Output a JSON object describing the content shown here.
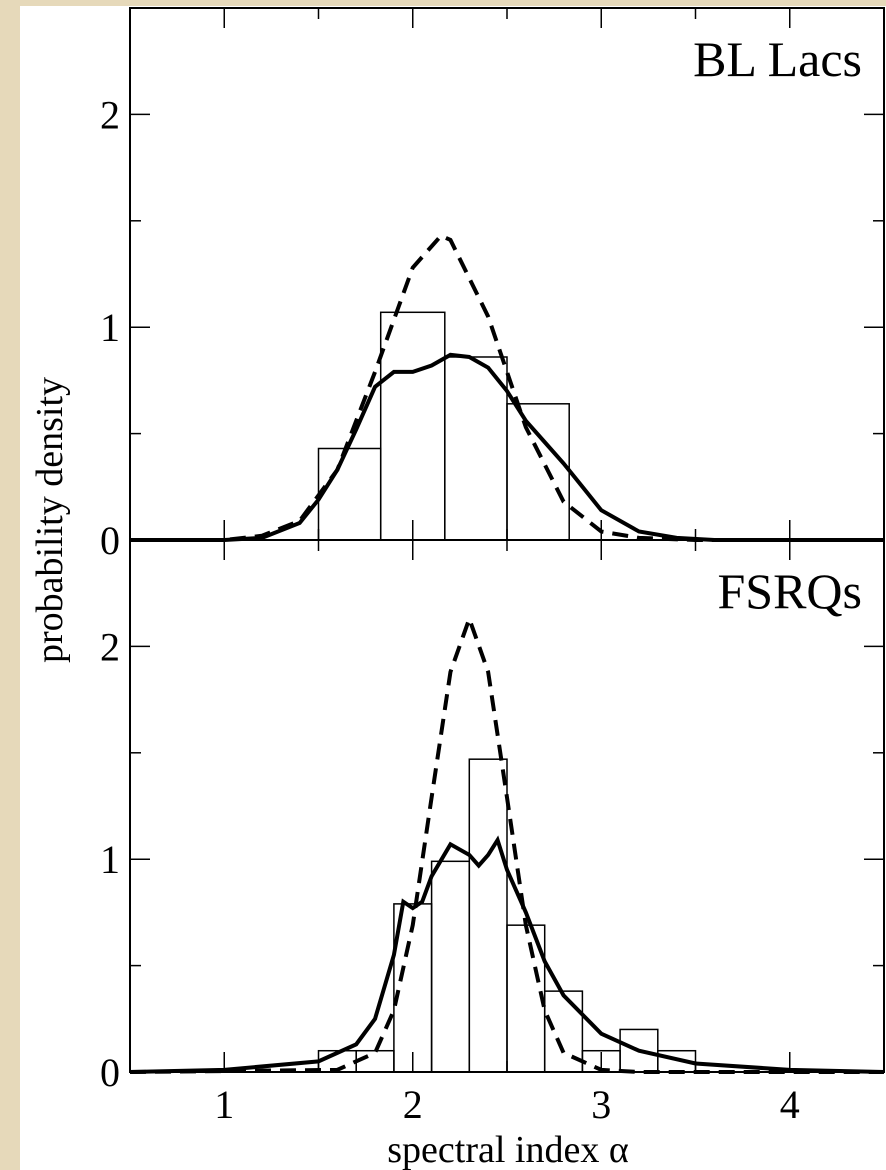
{
  "chart_data": [
    {
      "type": "histogram",
      "title": "BL Lacs",
      "y_label": "probability density",
      "xlim": [
        0.5,
        4.5
      ],
      "ylim": [
        0,
        2.5
      ],
      "yticks": [
        0,
        1,
        2
      ],
      "yminor": [
        0.5,
        1.5
      ],
      "bins": [
        1.5,
        1.83,
        2.17,
        2.5,
        2.83
      ],
      "counts": [
        0.43,
        1.07,
        0.86,
        0.64
      ],
      "bar_color": "#000",
      "series": [
        {
          "style": "solid",
          "color": "#000",
          "x": [
            0.5,
            1.0,
            1.2,
            1.4,
            1.5,
            1.6,
            1.7,
            1.8,
            1.9,
            2.0,
            2.1,
            2.2,
            2.3,
            2.4,
            2.5,
            2.6,
            2.7,
            2.8,
            2.9,
            3.0,
            3.2,
            3.4,
            3.6,
            4.5
          ],
          "values": [
            0,
            0,
            0.01,
            0.08,
            0.19,
            0.33,
            0.52,
            0.72,
            0.79,
            0.79,
            0.82,
            0.87,
            0.86,
            0.81,
            0.7,
            0.56,
            0.46,
            0.36,
            0.25,
            0.14,
            0.04,
            0.01,
            0,
            0
          ]
        },
        {
          "style": "dashed",
          "color": "#000",
          "x": [
            0.5,
            1.0,
            1.2,
            1.4,
            1.6,
            1.8,
            2.0,
            2.15,
            2.2,
            2.4,
            2.6,
            2.8,
            3.0,
            3.2,
            3.5,
            4.5
          ],
          "values": [
            0,
            0,
            0.02,
            0.09,
            0.33,
            0.79,
            1.28,
            1.43,
            1.41,
            1.05,
            0.53,
            0.18,
            0.04,
            0.01,
            0,
            0
          ]
        }
      ]
    },
    {
      "type": "histogram",
      "title": "FSRQs",
      "x_label": "spectral index  α",
      "xlim": [
        0.5,
        4.5
      ],
      "ylim": [
        0,
        2.5
      ],
      "xticks": [
        1,
        2,
        3,
        4
      ],
      "xminor": [
        1.5,
        2.5,
        3.5
      ],
      "yticks": [
        0,
        1,
        2
      ],
      "yminor": [
        0.5,
        1.5
      ],
      "bins": [
        1.5,
        1.7,
        1.9,
        2.1,
        2.3,
        2.5,
        2.7,
        2.9,
        3.1,
        3.3,
        3.5
      ],
      "counts": [
        0.1,
        0.1,
        0.79,
        0.99,
        1.47,
        0.69,
        0.38,
        0.1,
        0.2,
        0.1
      ],
      "bar_color": "#000",
      "series": [
        {
          "style": "solid",
          "color": "#000",
          "x": [
            0.5,
            1.0,
            1.5,
            1.7,
            1.8,
            1.9,
            1.95,
            2.0,
            2.05,
            2.1,
            2.2,
            2.3,
            2.35,
            2.4,
            2.45,
            2.5,
            2.6,
            2.7,
            2.8,
            3.0,
            3.2,
            3.5,
            4.0,
            4.5
          ],
          "values": [
            0,
            0.01,
            0.05,
            0.13,
            0.25,
            0.55,
            0.8,
            0.77,
            0.8,
            0.92,
            1.07,
            1.02,
            0.97,
            1.02,
            1.09,
            0.95,
            0.75,
            0.52,
            0.36,
            0.18,
            0.1,
            0.04,
            0.01,
            0
          ]
        },
        {
          "style": "dashed",
          "color": "#000",
          "x": [
            0.5,
            1.6,
            1.8,
            1.9,
            2.0,
            2.1,
            2.2,
            2.3,
            2.4,
            2.5,
            2.6,
            2.7,
            2.8,
            3.0,
            3.2,
            4.5
          ],
          "values": [
            0,
            0.01,
            0.09,
            0.29,
            0.69,
            1.29,
            1.88,
            2.13,
            1.88,
            1.29,
            0.69,
            0.29,
            0.09,
            0.01,
            0,
            0
          ]
        }
      ]
    }
  ]
}
